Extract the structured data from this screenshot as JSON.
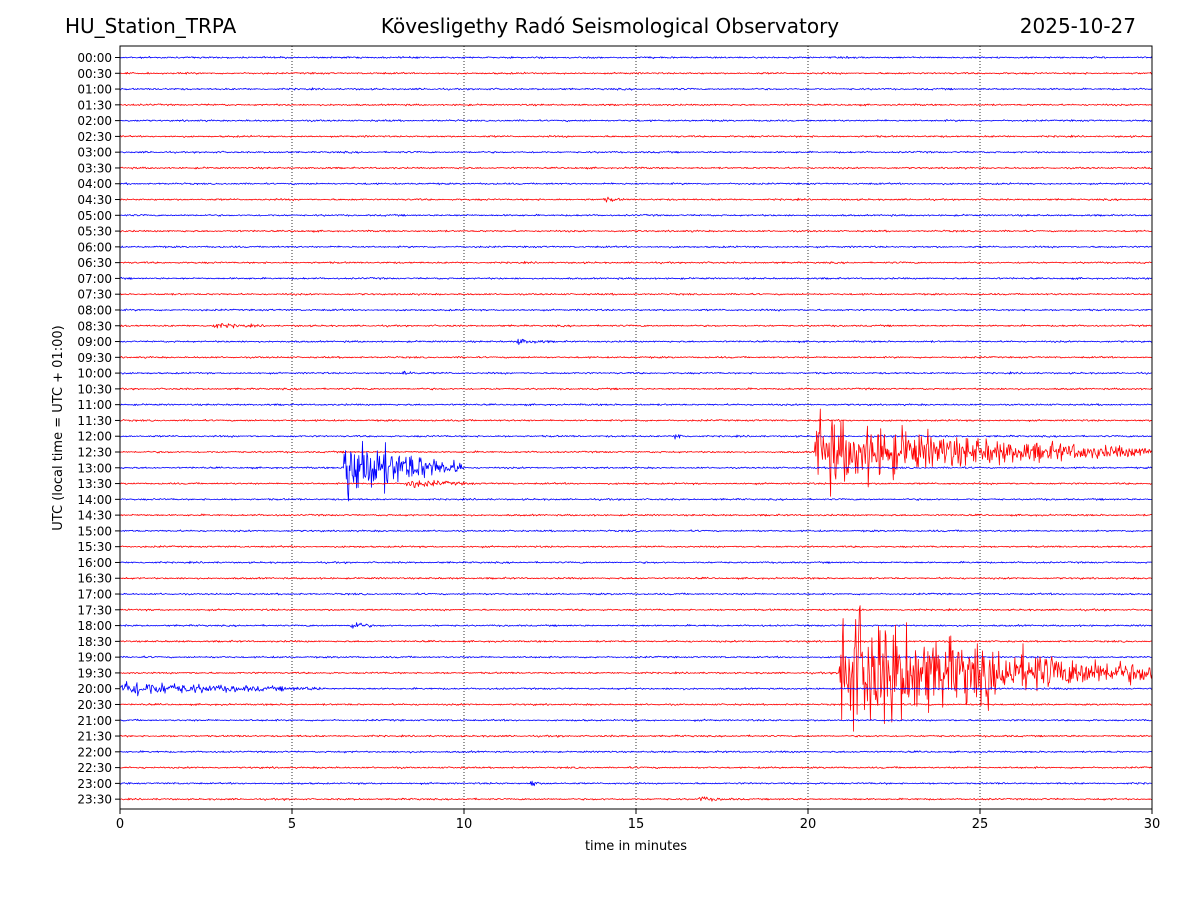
{
  "header": {
    "station": "HU_Station_TRPA",
    "observatory": "Kövesligethy Radó Seismological Observatory",
    "date": "2025-10-27"
  },
  "chart_data": {
    "type": "line",
    "title": "Kövesligethy Radó Seismological Observatory",
    "xlabel": "time in minutes",
    "ylabel": "UTC (local time = UTC + 01:00)",
    "xlim": [
      0,
      30
    ],
    "xticks": [
      "0",
      "5",
      "10",
      "15",
      "20",
      "25",
      "30"
    ],
    "grid": "vertical-dotted",
    "colors": {
      "even_row": "#0000ff",
      "odd_row": "#ff0000"
    },
    "rows": [
      "00:00",
      "00:30",
      "01:00",
      "01:30",
      "02:00",
      "02:30",
      "03:00",
      "03:30",
      "04:00",
      "04:30",
      "05:00",
      "05:30",
      "06:00",
      "06:30",
      "07:00",
      "07:30",
      "08:00",
      "08:30",
      "09:00",
      "09:30",
      "10:00",
      "10:30",
      "11:00",
      "11:30",
      "12:00",
      "12:30",
      "13:00",
      "13:30",
      "14:00",
      "14:30",
      "15:00",
      "15:30",
      "16:00",
      "16:30",
      "17:00",
      "17:30",
      "18:00",
      "18:30",
      "19:00",
      "19:30",
      "20:00",
      "20:30",
      "21:00",
      "21:30",
      "22:00",
      "22:30",
      "23:00",
      "23:30"
    ],
    "events": [
      {
        "row": "13:00",
        "start_min": 6.5,
        "duration_min": 3.5,
        "amplitude_rows": 5.5
      },
      {
        "row": "13:30",
        "start_min": 8.3,
        "duration_min": 2.0,
        "amplitude_rows": 0.6
      },
      {
        "row": "12:30",
        "start_min": 20.2,
        "duration_min": 10.0,
        "amplitude_rows": 4.5
      },
      {
        "row": "19:30",
        "start_min": 20.9,
        "duration_min": 9.1,
        "amplitude_rows": 9.0
      },
      {
        "row": "20:00",
        "start_min": 0.0,
        "duration_min": 6.0,
        "amplitude_rows": 1.0
      },
      {
        "row": "18:00",
        "start_min": 6.7,
        "duration_min": 0.6,
        "amplitude_rows": 0.8
      },
      {
        "row": "09:00",
        "start_min": 11.5,
        "duration_min": 1.0,
        "amplitude_rows": 0.4
      },
      {
        "row": "12:00",
        "start_min": 16.1,
        "duration_min": 0.4,
        "amplitude_rows": 0.6
      },
      {
        "row": "23:00",
        "start_min": 11.9,
        "duration_min": 0.3,
        "amplitude_rows": 0.8
      },
      {
        "row": "10:00",
        "start_min": 8.2,
        "duration_min": 0.6,
        "amplitude_rows": 0.4
      },
      {
        "row": "08:30",
        "start_min": 2.7,
        "duration_min": 1.5,
        "amplitude_rows": 0.3
      },
      {
        "row": "23:30",
        "start_min": 16.8,
        "duration_min": 1.0,
        "amplitude_rows": 0.3
      },
      {
        "row": "04:30",
        "start_min": 14.1,
        "duration_min": 0.6,
        "amplitude_rows": 0.3
      }
    ]
  }
}
